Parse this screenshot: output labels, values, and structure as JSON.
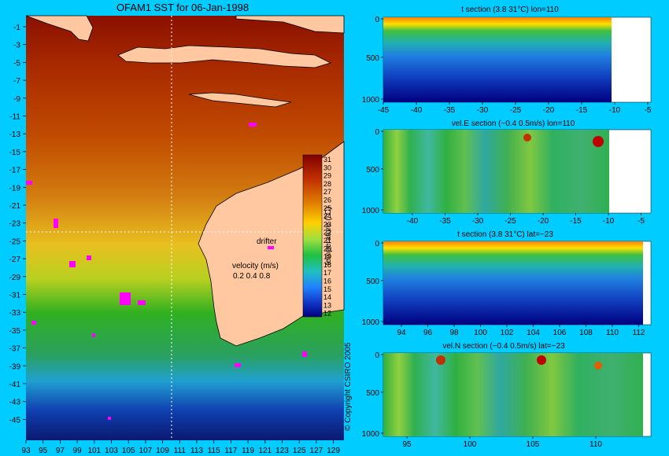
{
  "chart_data": [
    {
      "type": "heatmap",
      "title": "OFAM1 SST for 06-Jan-1998",
      "x_ticks": [
        93,
        95,
        97,
        99,
        101,
        103,
        105,
        107,
        109,
        111,
        113,
        115,
        117,
        119,
        121,
        123,
        125,
        127,
        129
      ],
      "y_ticks": [
        -1,
        -3,
        -5,
        -7,
        -9,
        -11,
        -13,
        -15,
        -17,
        -19,
        -21,
        -23,
        -25,
        -27,
        -29,
        -31,
        -33,
        -35,
        -37,
        -39,
        -41,
        -43,
        -45
      ],
      "xlim": [
        93,
        130
      ],
      "ylim": [
        -46,
        0
      ],
      "colorbar": {
        "label": "temperature (°C)",
        "ticks": [
          31,
          30,
          29,
          28,
          27,
          26,
          25,
          24,
          23,
          22,
          21,
          20,
          19,
          18,
          17,
          16,
          15,
          14,
          13,
          12
        ]
      },
      "annotations": {
        "drifter": "drifter",
        "velocity_title": "velocity (m/s)",
        "velocity_scale": "0.2 0.4 0.8"
      },
      "section_lines": {
        "lon": 110,
        "lat": -23
      }
    },
    {
      "type": "heatmap",
      "title": "t section (3.8      31°C) lon=110",
      "x_ticks": [
        "-45",
        "-40",
        "-35",
        "-30",
        "-25",
        "-20",
        "-15",
        "-10",
        "-5"
      ],
      "y_ticks": [
        "0",
        "500",
        "1000"
      ]
    },
    {
      "type": "heatmap",
      "title": "vel.E section (−0.4      0.5m/s) lon=110",
      "x_ticks": [
        "-40",
        "-35",
        "-30",
        "-25",
        "-20",
        "-15",
        "-10",
        "-5"
      ],
      "y_ticks": [
        "0",
        "500",
        "1000"
      ]
    },
    {
      "type": "heatmap",
      "title": "t section (3.8      31°C) lat=−23",
      "x_ticks": [
        "94",
        "96",
        "98",
        "100",
        "102",
        "104",
        "106",
        "108",
        "110",
        "112"
      ],
      "y_ticks": [
        "0",
        "500",
        "1000"
      ]
    },
    {
      "type": "heatmap",
      "title": "vel.N section (−0.4      0.5m/s) lat=−23",
      "x_ticks": [
        "95",
        "100",
        "105",
        "110"
      ],
      "y_ticks": [
        "0",
        "500",
        "1000"
      ]
    }
  ],
  "copyright": "© Copyright CSIRO 2005"
}
